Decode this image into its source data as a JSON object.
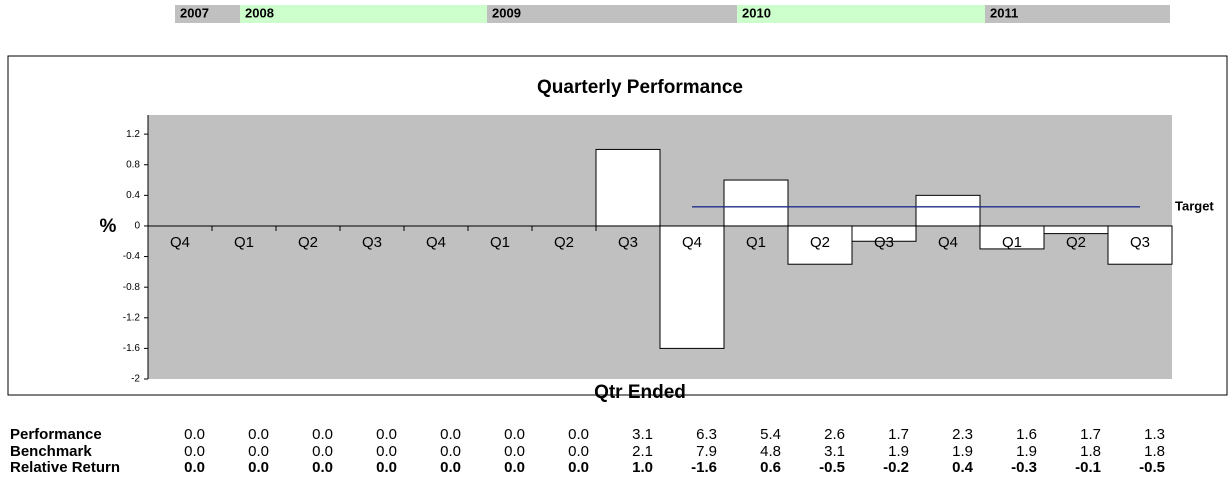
{
  "year_band": [
    {
      "label": "2007",
      "color": "#c0c0c0"
    },
    {
      "label": "2008",
      "color": "#ccffcc"
    },
    {
      "label": "2009",
      "color": "#c0c0c0"
    },
    {
      "label": "2010",
      "color": "#ccffcc"
    },
    {
      "label": "2011",
      "color": "#c0c0c0"
    }
  ],
  "chart_data": {
    "type": "bar",
    "title": "Quarterly Performance",
    "y_label": "%",
    "x_label": "Qtr Ended",
    "categories": [
      "Q4",
      "Q1",
      "Q2",
      "Q3",
      "Q4",
      "Q1",
      "Q2",
      "Q3",
      "Q4",
      "Q1",
      "Q2",
      "Q3",
      "Q4",
      "Q1",
      "Q2",
      "Q3"
    ],
    "series": [
      {
        "name": "Relative Return",
        "color": "#ffffff",
        "values": [
          0,
          0,
          0,
          0,
          0,
          0,
          0,
          1.0,
          -1.6,
          0.6,
          -0.5,
          -0.2,
          0.4,
          -0.3,
          -0.1,
          -0.5
        ],
        "value_labels": [
          "0.0",
          "0.0",
          "0.0",
          "0.0",
          "0.0",
          "0.0",
          "0.0",
          "1.0",
          "-1.6",
          "0.6",
          "-0.5",
          "-0.2",
          "0.4",
          "-0.3",
          "-0.1",
          "-0.5"
        ]
      },
      {
        "name": "Target",
        "type": "line",
        "color": "#1f2d8a",
        "values": [
          null,
          null,
          null,
          null,
          null,
          null,
          null,
          null,
          0.25,
          0.25,
          0.25,
          0.25,
          0.25,
          0.25,
          0.25,
          0.25
        ]
      }
    ],
    "ylim": [
      -2,
      1.45
    ],
    "yticks": [
      -2,
      -1.6,
      -1.2,
      -0.8,
      -0.4,
      0,
      0.4,
      0.8,
      1.2
    ],
    "plot_color": "#c0c0c0"
  },
  "table": {
    "rows": [
      {
        "label": "Performance",
        "values": [
          0,
          0,
          0,
          0,
          0,
          0,
          0,
          3.1,
          6.3,
          5.4,
          2.6,
          1.7,
          2.3,
          1.6,
          1.7,
          1.3
        ],
        "value_labels": [
          "0.0",
          "0.0",
          "0.0",
          "0.0",
          "0.0",
          "0.0",
          "0.0",
          "3.1",
          "6.3",
          "5.4",
          "2.6",
          "1.7",
          "2.3",
          "1.6",
          "1.7",
          "1.3"
        ]
      },
      {
        "label": "Benchmark",
        "values": [
          0,
          0,
          0,
          0,
          0,
          0,
          0,
          2.1,
          7.9,
          4.8,
          3.1,
          1.9,
          1.9,
          1.9,
          1.8,
          1.8
        ],
        "value_labels": [
          "0.0",
          "0.0",
          "0.0",
          "0.0",
          "0.0",
          "0.0",
          "0.0",
          "2.1",
          "7.9",
          "4.8",
          "3.1",
          "1.9",
          "1.9",
          "1.9",
          "1.8",
          "1.8"
        ]
      }
    ]
  }
}
